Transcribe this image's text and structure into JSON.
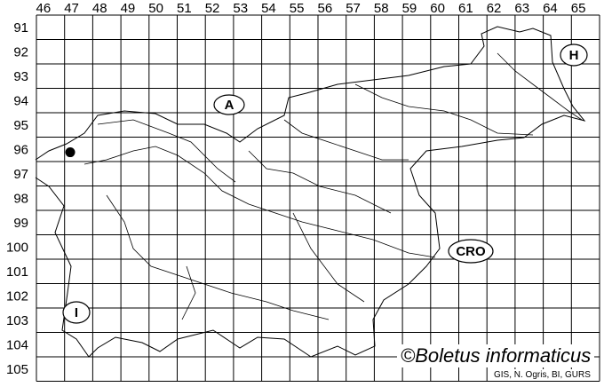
{
  "map": {
    "columns": [
      "46",
      "47",
      "48",
      "49",
      "50",
      "51",
      "52",
      "53",
      "54",
      "55",
      "56",
      "57",
      "58",
      "59",
      "60",
      "61",
      "62",
      "63",
      "64",
      "65"
    ],
    "rows": [
      "91",
      "92",
      "93",
      "94",
      "95",
      "96",
      "97",
      "98",
      "99",
      "100",
      "101",
      "102",
      "103",
      "104",
      "105"
    ],
    "country_labels": [
      {
        "id": "A",
        "text": "A"
      },
      {
        "id": "H",
        "text": "H"
      },
      {
        "id": "CRO",
        "text": "CRO"
      },
      {
        "id": "I",
        "text": "I"
      }
    ],
    "records": [
      {
        "column": "47",
        "row": "96"
      }
    ],
    "colors": {
      "lines": "#000000",
      "background": "#ffffff",
      "record": "#000000"
    }
  },
  "watermark": "©Boletus informaticus",
  "credit": "GIS, N. Ogris, BI, GURS"
}
